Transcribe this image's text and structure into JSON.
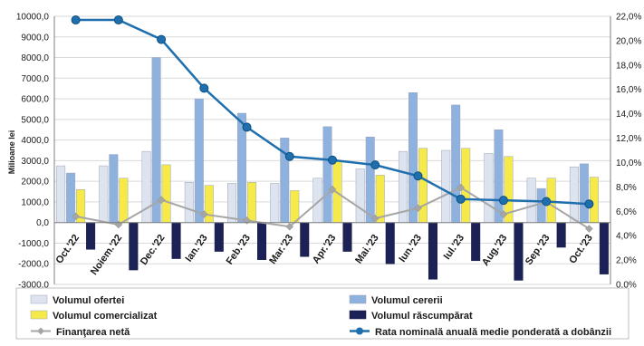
{
  "chart_data": {
    "type": "bar",
    "categories": [
      "Oct.'22",
      "Noiem.'22",
      "Dec.'22",
      "Ian.'23",
      "Feb.'23",
      "Mar.'23",
      "Apr.'23",
      "Mai.'23",
      "Iun.'23",
      "Iul.'23",
      "Aug.'23",
      "Sep.'23",
      "Oct.'23"
    ],
    "ylabel": "Milioane lei",
    "ylim": [
      -3000,
      10000
    ],
    "y_ticks": [
      "10000,0",
      "9000,0",
      "8000,0",
      "7000,0",
      "6000,0",
      "5000,0",
      "4000,0",
      "3000,0",
      "2000,0",
      "1000,0",
      "0,0",
      "-1000,0",
      "-2000,0",
      "-3000,0"
    ],
    "y2lim": [
      0,
      22
    ],
    "y2_ticks": [
      "22,0%",
      "20,0%",
      "18,0%",
      "16,0%",
      "14,0%",
      "12,0%",
      "10,0%",
      "8,0%",
      "6,0%",
      "4,0%",
      "2,0%",
      "0,0%"
    ],
    "grid": true,
    "legend_position": "bottom",
    "series": [
      {
        "name": "Volumul ofertei",
        "kind": "bar",
        "axis": "left",
        "color": "#dde3ef",
        "values": [
          2750,
          2750,
          3450,
          1950,
          1900,
          1900,
          2150,
          2600,
          3450,
          3500,
          3350,
          2150,
          2700
        ]
      },
      {
        "name": "Volumul cererii",
        "kind": "bar",
        "axis": "left",
        "color": "#8eb1de",
        "values": [
          2400,
          3300,
          8000,
          6000,
          5300,
          4100,
          4650,
          4150,
          6300,
          5700,
          4500,
          1650,
          2850
        ]
      },
      {
        "name": "Volumul comercializat",
        "kind": "bar",
        "axis": "left",
        "color": "#f6ea4a",
        "values": [
          1600,
          2150,
          2800,
          1800,
          1950,
          1550,
          3000,
          2300,
          3600,
          3600,
          3200,
          2150,
          2200
        ]
      },
      {
        "name": "Volumul răscumpărat",
        "kind": "bar",
        "axis": "left",
        "color": "#1c2256",
        "values": [
          -1300,
          -2300,
          -1750,
          -1400,
          -1800,
          -1650,
          -1400,
          -2000,
          -2750,
          -1850,
          -2800,
          -1200,
          -2500
        ]
      },
      {
        "name": "Finanţarea netă",
        "kind": "line",
        "axis": "left",
        "color": "#a6a6a6",
        "values": [
          300,
          -100,
          1100,
          400,
          100,
          -200,
          1600,
          200,
          700,
          1700,
          400,
          1000,
          -300
        ]
      },
      {
        "name": "Rata nominală anuală medie ponderată a dobânzii",
        "kind": "line",
        "axis": "right",
        "color": "#1f6fae",
        "values": [
          21.7,
          21.7,
          20.1,
          16.1,
          12.9,
          10.5,
          10.2,
          9.8,
          8.9,
          7.0,
          6.9,
          6.8,
          6.6
        ]
      }
    ]
  }
}
